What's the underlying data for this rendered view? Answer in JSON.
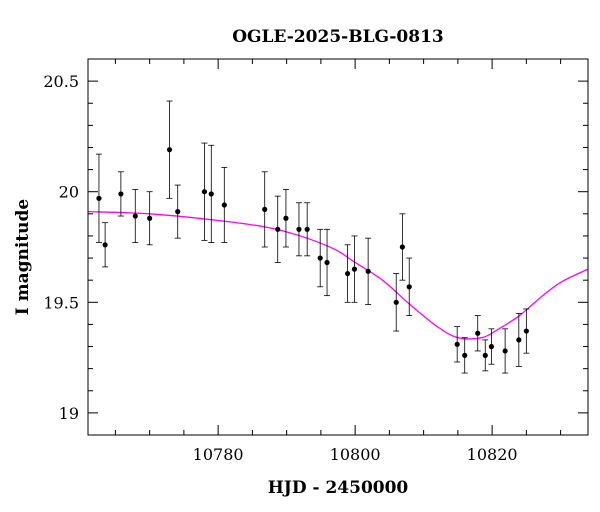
{
  "chart_data": {
    "type": "scatter",
    "title": "OGLE-2025-BLG-0813",
    "xlabel": "HJD - 2450000",
    "ylabel": "I magnitude",
    "xlim": [
      10761,
      10834
    ],
    "ylim": [
      20.6,
      18.9
    ],
    "y_inverted": true,
    "x_ticks": [
      10780,
      10800,
      10820
    ],
    "x_tick_labels": [
      "10780",
      "10800",
      "10820"
    ],
    "y_ticks": [
      19,
      19.5,
      20,
      20.5
    ],
    "y_tick_labels": [
      "19",
      "19.5",
      "20",
      "20.5"
    ],
    "grid": false,
    "model_color": "#ff00ff",
    "point_color": "#000000",
    "model_curve": {
      "x": [
        10761,
        10770,
        10780,
        10787,
        10792,
        10797,
        10800,
        10804,
        10808,
        10812,
        10815,
        10818.5,
        10821,
        10824,
        10827,
        10830,
        10834
      ],
      "y": [
        19.91,
        19.9,
        19.87,
        19.84,
        19.8,
        19.74,
        19.68,
        19.6,
        19.49,
        19.39,
        19.34,
        19.34,
        19.38,
        19.44,
        19.52,
        19.59,
        19.65
      ]
    },
    "points": [
      {
        "x": 10762.6,
        "y": 19.97,
        "err": 0.2
      },
      {
        "x": 10763.5,
        "y": 19.76,
        "err": 0.1
      },
      {
        "x": 10765.8,
        "y": 19.99,
        "err": 0.1
      },
      {
        "x": 10767.9,
        "y": 19.89,
        "err": 0.12
      },
      {
        "x": 10770.0,
        "y": 19.88,
        "err": 0.12
      },
      {
        "x": 10772.9,
        "y": 20.19,
        "err": 0.22
      },
      {
        "x": 10774.1,
        "y": 19.91,
        "err": 0.12
      },
      {
        "x": 10778.0,
        "y": 20.0,
        "err": 0.22
      },
      {
        "x": 10779.0,
        "y": 19.99,
        "err": 0.22
      },
      {
        "x": 10780.9,
        "y": 19.94,
        "err": 0.17
      },
      {
        "x": 10786.8,
        "y": 19.92,
        "err": 0.17
      },
      {
        "x": 10788.7,
        "y": 19.83,
        "err": 0.15
      },
      {
        "x": 10789.9,
        "y": 19.88,
        "err": 0.13
      },
      {
        "x": 10791.8,
        "y": 19.83,
        "err": 0.12
      },
      {
        "x": 10793.0,
        "y": 19.83,
        "err": 0.12
      },
      {
        "x": 10794.9,
        "y": 19.7,
        "err": 0.13
      },
      {
        "x": 10795.9,
        "y": 19.68,
        "err": 0.15
      },
      {
        "x": 10798.9,
        "y": 19.63,
        "err": 0.13
      },
      {
        "x": 10799.9,
        "y": 19.65,
        "err": 0.15
      },
      {
        "x": 10801.9,
        "y": 19.64,
        "err": 0.15
      },
      {
        "x": 10806.0,
        "y": 19.5,
        "err": 0.13
      },
      {
        "x": 10806.9,
        "y": 19.75,
        "err": 0.15
      },
      {
        "x": 10807.9,
        "y": 19.57,
        "err": 0.13
      },
      {
        "x": 10814.9,
        "y": 19.31,
        "err": 0.08
      },
      {
        "x": 10816.0,
        "y": 19.26,
        "err": 0.08
      },
      {
        "x": 10817.9,
        "y": 19.36,
        "err": 0.08
      },
      {
        "x": 10819.0,
        "y": 19.26,
        "err": 0.07
      },
      {
        "x": 10819.9,
        "y": 19.3,
        "err": 0.08
      },
      {
        "x": 10821.9,
        "y": 19.28,
        "err": 0.1
      },
      {
        "x": 10823.9,
        "y": 19.33,
        "err": 0.12
      },
      {
        "x": 10825.0,
        "y": 19.37,
        "err": 0.1
      }
    ]
  }
}
